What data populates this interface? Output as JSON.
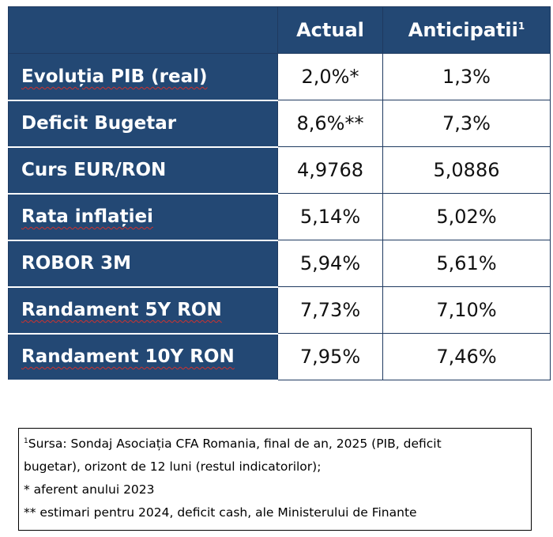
{
  "table": {
    "header": {
      "col1": "",
      "col2": "Actual",
      "col3": "Anticipatii",
      "col3_sup": "1"
    },
    "rows": [
      {
        "label": "Evoluția PIB (real)",
        "actual": "2,0%*",
        "anticipated": "1,3%"
      },
      {
        "label": "Deficit Bugetar",
        "actual": "8,6%**",
        "anticipated": "7,3%"
      },
      {
        "label": "Curs EUR/RON",
        "actual": "4,9768",
        "anticipated": "5,0886"
      },
      {
        "label": "Rata inflației",
        "actual": "5,14%",
        "anticipated": "5,02%"
      },
      {
        "label": "ROBOR 3M",
        "actual": "5,94%",
        "anticipated": "5,61%"
      },
      {
        "label": "Randament 5Y RON",
        "actual": "7,73%",
        "anticipated": "7,10%"
      },
      {
        "label": "Randament 10Y RON",
        "actual": "7,95%",
        "anticipated": "7,46%"
      }
    ],
    "colors": {
      "header_bg": "#234874",
      "label_bg": "#234874",
      "value_bg": "#ffffff"
    }
  },
  "notes": {
    "sup": "1",
    "line1": "Sursa: Sondaj Asociația CFA Romania, final de an, 2025 (PIB, deficit",
    "line2": "bugetar), orizont de 12 luni (restul indicatorilor);",
    "line3": "* aferent anului 2023",
    "line4": "** estimari pentru 2024, deficit cash, ale Ministerului de Finante"
  }
}
